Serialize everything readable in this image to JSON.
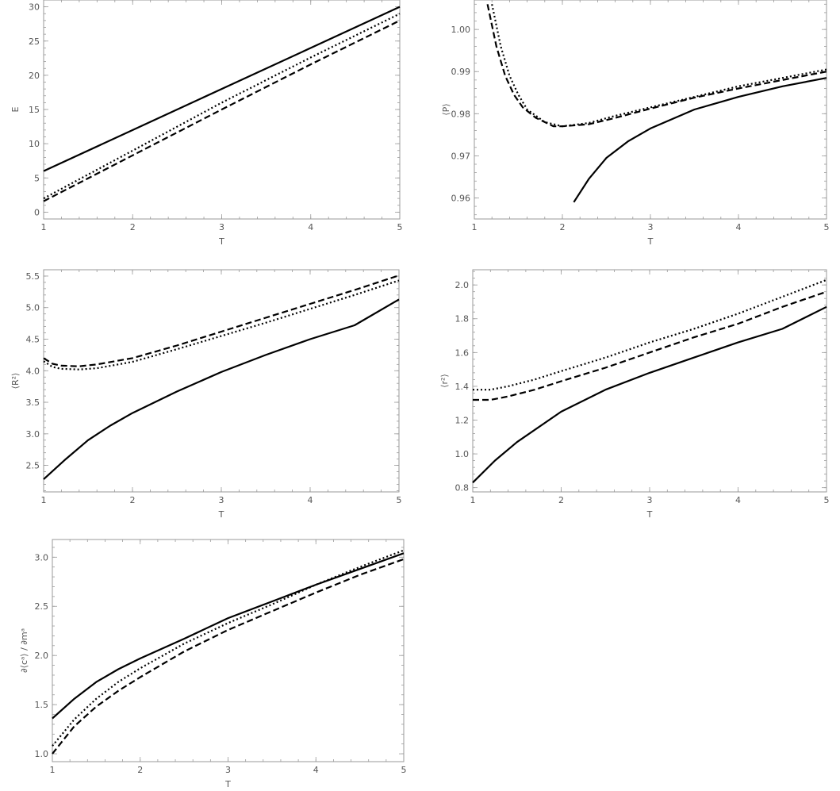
{
  "chart_data": [
    {
      "type": "line",
      "xlabel": "T",
      "ylabel": "E",
      "xlim": [
        1,
        5
      ],
      "ylim": [
        -1,
        31
      ],
      "xticks": [
        "1",
        "2",
        "3",
        "4",
        "5"
      ],
      "yticks": [
        "0",
        "5",
        "10",
        "15",
        "20",
        "25",
        "30"
      ],
      "series": [
        {
          "style": "solid",
          "x": [
            1,
            2,
            3,
            4,
            5
          ],
          "y": [
            6.0,
            12.0,
            18.0,
            24.0,
            30.0
          ]
        },
        {
          "style": "dotted",
          "x": [
            1,
            2,
            3,
            4,
            5
          ],
          "y": [
            2.0,
            9.0,
            16.0,
            22.6,
            29.0
          ]
        },
        {
          "style": "dashed",
          "x": [
            1,
            2,
            3,
            4,
            5
          ],
          "y": [
            1.6,
            8.3,
            15.0,
            21.6,
            28.0
          ]
        }
      ]
    },
    {
      "type": "line",
      "xlabel": "T",
      "ylabel": "⟨P⟩",
      "xlim": [
        1,
        5
      ],
      "ylim": [
        0.955,
        1.007
      ],
      "xticks": [
        "1",
        "2",
        "3",
        "4",
        "5"
      ],
      "yticks": [
        "0.96",
        "0.97",
        "0.98",
        "0.99",
        "1.00"
      ],
      "series": [
        {
          "style": "solid",
          "x": [
            2.13,
            2.3,
            2.5,
            2.75,
            3.0,
            3.5,
            4.0,
            4.5,
            5.0
          ],
          "y": [
            0.959,
            0.9645,
            0.9695,
            0.9735,
            0.9765,
            0.981,
            0.984,
            0.9865,
            0.9885
          ]
        },
        {
          "style": "dotted",
          "x": [
            1.2,
            1.3,
            1.4,
            1.5,
            1.6,
            1.8,
            2.0,
            2.3,
            2.6,
            3.0,
            3.5,
            4.0,
            4.5,
            5.0
          ],
          "y": [
            1.006,
            0.996,
            0.989,
            0.9845,
            0.981,
            0.978,
            0.977,
            0.9778,
            0.9795,
            0.9815,
            0.984,
            0.9865,
            0.9885,
            0.9905
          ]
        },
        {
          "style": "dashed",
          "x": [
            1.15,
            1.25,
            1.35,
            1.45,
            1.55,
            1.7,
            1.9,
            2.0,
            2.3,
            2.6,
            3.0,
            3.5,
            4.0,
            4.5,
            5.0
          ],
          "y": [
            1.006,
            0.996,
            0.989,
            0.9845,
            0.9815,
            0.979,
            0.977,
            0.977,
            0.9775,
            0.979,
            0.9812,
            0.9838,
            0.986,
            0.988,
            0.99
          ]
        }
      ]
    },
    {
      "type": "line",
      "xlabel": "T",
      "ylabel": "⟨R²⟩",
      "xlim": [
        1,
        5
      ],
      "ylim": [
        2.08,
        5.6
      ],
      "xticks": [
        "1",
        "2",
        "3",
        "4",
        "5"
      ],
      "yticks": [
        "2.5",
        "3.0",
        "3.5",
        "4.0",
        "4.5",
        "5.0",
        "5.5"
      ],
      "series": [
        {
          "style": "solid",
          "x": [
            1.0,
            1.25,
            1.5,
            1.75,
            2.0,
            2.5,
            3.0,
            3.5,
            4.0,
            4.5,
            5.0
          ],
          "y": [
            2.28,
            2.6,
            2.9,
            3.13,
            3.33,
            3.67,
            3.98,
            4.25,
            4.5,
            4.72,
            5.13
          ]
        },
        {
          "style": "dotted",
          "x": [
            1.0,
            1.1,
            1.2,
            1.4,
            1.6,
            2.0,
            2.5,
            3.0,
            3.5,
            4.0,
            4.5,
            5.0
          ],
          "y": [
            4.15,
            4.06,
            4.03,
            4.02,
            4.04,
            4.14,
            4.34,
            4.55,
            4.76,
            4.98,
            5.2,
            5.43
          ]
        },
        {
          "style": "dashed",
          "x": [
            1.0,
            1.1,
            1.2,
            1.4,
            1.6,
            2.0,
            2.5,
            3.0,
            3.5,
            4.0,
            4.5,
            5.0
          ],
          "y": [
            4.2,
            4.11,
            4.08,
            4.07,
            4.1,
            4.2,
            4.4,
            4.62,
            4.84,
            5.06,
            5.28,
            5.51
          ]
        }
      ]
    },
    {
      "type": "line",
      "xlabel": "T",
      "ylabel": "⟨r²⟩",
      "xlim": [
        1,
        5
      ],
      "ylim": [
        0.775,
        2.09
      ],
      "xticks": [
        "1",
        "2",
        "3",
        "4",
        "5"
      ],
      "yticks": [
        "0.8",
        "1.0",
        "1.2",
        "1.4",
        "1.6",
        "1.8",
        "2.0"
      ],
      "series": [
        {
          "style": "solid",
          "x": [
            1.0,
            1.25,
            1.5,
            2.0,
            2.5,
            3.0,
            3.5,
            4.0,
            4.5,
            5.0
          ],
          "y": [
            0.83,
            0.96,
            1.07,
            1.25,
            1.38,
            1.48,
            1.57,
            1.66,
            1.74,
            1.87
          ]
        },
        {
          "style": "dotted",
          "x": [
            1.0,
            1.2,
            1.4,
            1.7,
            2.0,
            2.5,
            3.0,
            3.5,
            4.0,
            4.5,
            5.0
          ],
          "y": [
            1.38,
            1.38,
            1.4,
            1.44,
            1.49,
            1.57,
            1.66,
            1.74,
            1.83,
            1.93,
            2.03
          ]
        },
        {
          "style": "dashed",
          "x": [
            1.0,
            1.2,
            1.4,
            1.7,
            2.0,
            2.5,
            3.0,
            3.5,
            4.0,
            4.5,
            5.0
          ],
          "y": [
            1.32,
            1.32,
            1.34,
            1.38,
            1.43,
            1.51,
            1.6,
            1.69,
            1.77,
            1.87,
            1.96
          ]
        }
      ]
    },
    {
      "type": "line",
      "xlabel": "T",
      "ylabel": "∂⟨cᵃ⟩ / ∂mᵃ",
      "xlim": [
        1,
        5
      ],
      "ylim": [
        0.92,
        3.18
      ],
      "xticks": [
        "1",
        "2",
        "3",
        "4",
        "5"
      ],
      "yticks": [
        "1.0",
        "1.5",
        "2.0",
        "2.5",
        "3.0"
      ],
      "series": [
        {
          "style": "solid",
          "x": [
            1.0,
            1.25,
            1.5,
            1.75,
            2.0,
            2.5,
            3.0,
            3.5,
            4.0,
            4.5,
            5.0
          ],
          "y": [
            1.36,
            1.56,
            1.73,
            1.86,
            1.97,
            2.17,
            2.38,
            2.55,
            2.72,
            2.88,
            3.04
          ]
        },
        {
          "style": "dotted",
          "x": [
            1.0,
            1.25,
            1.5,
            1.75,
            2.0,
            2.5,
            3.0,
            3.5,
            4.0,
            4.5,
            5.0
          ],
          "y": [
            1.08,
            1.35,
            1.56,
            1.73,
            1.87,
            2.12,
            2.33,
            2.52,
            2.72,
            2.9,
            3.07
          ]
        },
        {
          "style": "dashed",
          "x": [
            1.0,
            1.25,
            1.5,
            1.75,
            2.0,
            2.5,
            3.0,
            3.5,
            4.0,
            4.5,
            5.0
          ],
          "y": [
            1.0,
            1.28,
            1.48,
            1.64,
            1.78,
            2.04,
            2.26,
            2.45,
            2.64,
            2.82,
            2.98
          ]
        }
      ]
    }
  ]
}
